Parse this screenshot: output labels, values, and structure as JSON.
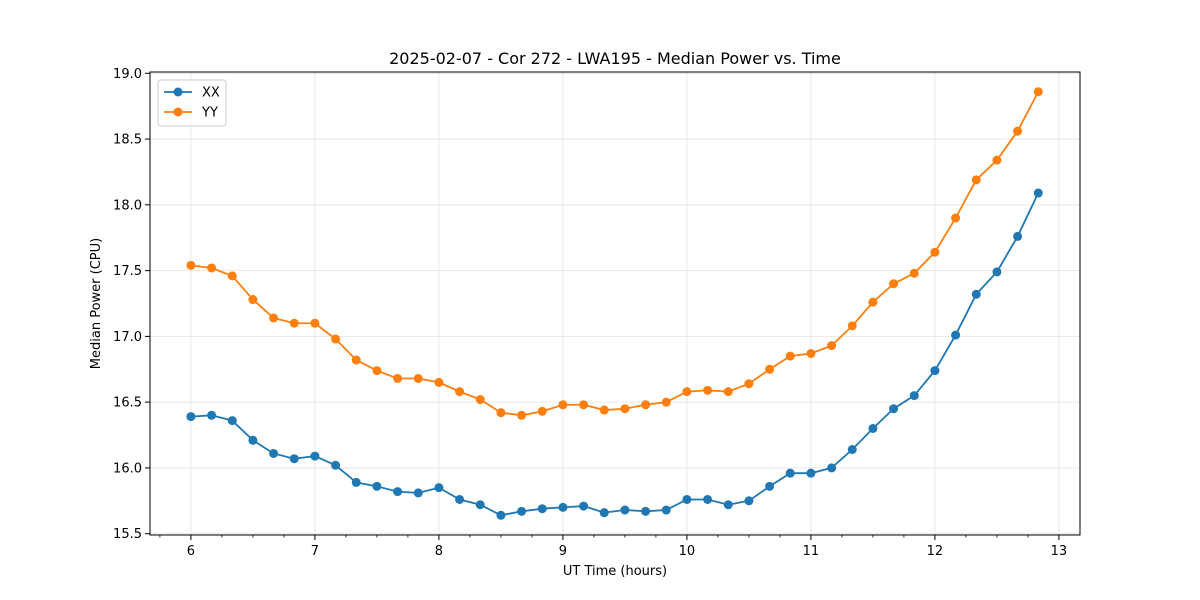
{
  "chart_data": {
    "type": "line",
    "title": "2025-02-07 - Cor 272 - LWA195 - Median Power vs. Time",
    "xlabel": "UT Time (hours)",
    "ylabel": "Median Power (CPU)",
    "xlim": [
      5.67,
      13.17
    ],
    "ylim": [
      15.49,
      19.01
    ],
    "xticks": [
      6,
      7,
      8,
      9,
      10,
      11,
      12,
      13
    ],
    "yticks": [
      15.5,
      16.0,
      16.5,
      17.0,
      17.5,
      18.0,
      18.5,
      19.0
    ],
    "ytick_labels": [
      "15.5",
      "16.0",
      "16.5",
      "17.0",
      "17.5",
      "18.0",
      "18.5",
      "19.0"
    ],
    "grid": true,
    "legend_position": "top-left",
    "x": [
      6.0,
      6.1667,
      6.3333,
      6.5,
      6.6667,
      6.8333,
      7.0,
      7.1667,
      7.3333,
      7.5,
      7.6667,
      7.8333,
      8.0,
      8.1667,
      8.3333,
      8.5,
      8.6667,
      8.8333,
      9.0,
      9.1667,
      9.3333,
      9.5,
      9.6667,
      9.8333,
      10.0,
      10.1667,
      10.3333,
      10.5,
      10.6667,
      10.8333,
      11.0,
      11.1667,
      11.3333,
      11.5,
      11.6667,
      11.8333,
      12.0,
      12.1667,
      12.3333,
      12.5,
      12.6667,
      12.8333
    ],
    "series": [
      {
        "name": "XX",
        "color": "#1f77b4",
        "values": [
          16.39,
          16.4,
          16.36,
          16.21,
          16.11,
          16.07,
          16.09,
          16.02,
          15.89,
          15.86,
          15.82,
          15.81,
          15.85,
          15.76,
          15.72,
          15.64,
          15.67,
          15.69,
          15.7,
          15.71,
          15.66,
          15.68,
          15.67,
          15.68,
          15.76,
          15.76,
          15.72,
          15.75,
          15.86,
          15.96,
          15.96,
          16.0,
          16.14,
          16.3,
          16.45,
          16.55,
          16.74,
          17.01,
          17.32,
          17.49,
          17.76,
          18.09
        ]
      },
      {
        "name": "YY",
        "color": "#ff7f0e",
        "values": [
          17.54,
          17.52,
          17.46,
          17.28,
          17.14,
          17.1,
          17.1,
          16.98,
          16.82,
          16.74,
          16.68,
          16.68,
          16.65,
          16.58,
          16.52,
          16.42,
          16.4,
          16.43,
          16.48,
          16.48,
          16.44,
          16.45,
          16.48,
          16.5,
          16.58,
          16.59,
          16.58,
          16.64,
          16.75,
          16.85,
          16.87,
          16.93,
          17.08,
          17.26,
          17.4,
          17.48,
          17.64,
          17.9,
          18.19,
          18.34,
          18.56,
          18.86
        ]
      }
    ]
  }
}
